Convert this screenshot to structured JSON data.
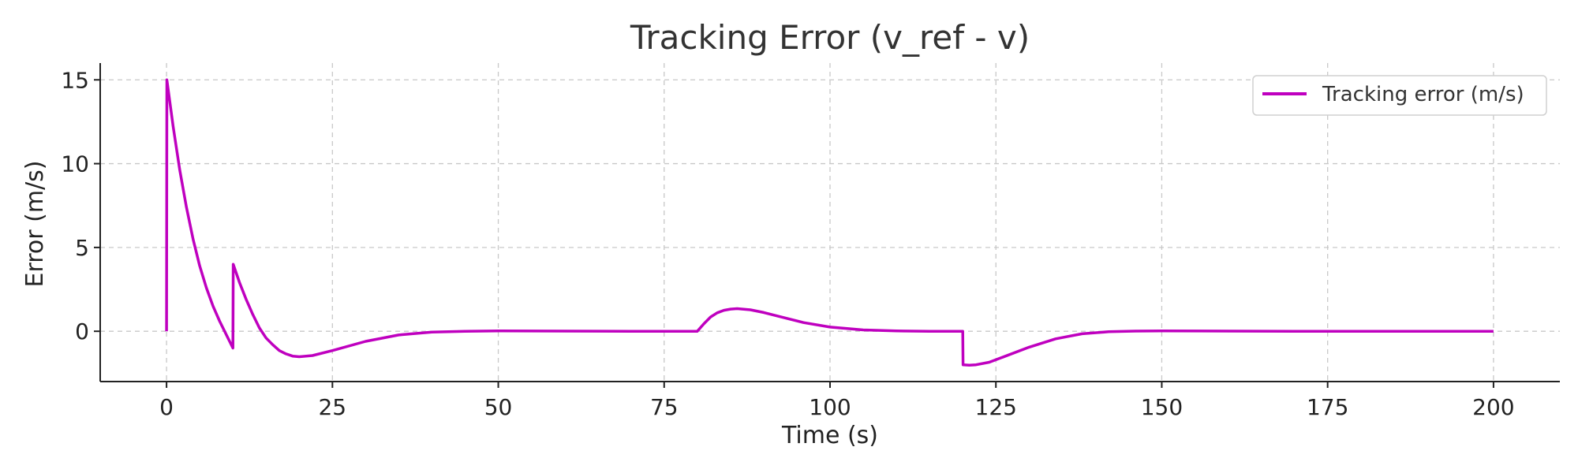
{
  "chart_data": {
    "type": "line",
    "title": "Tracking Error (v_ref - v)",
    "xlabel": "Time (s)",
    "ylabel": "Error (m/s)",
    "xlim": [
      -10,
      210
    ],
    "ylim": [
      -3,
      16
    ],
    "xticks": [
      0,
      25,
      50,
      75,
      100,
      125,
      150,
      175,
      200
    ],
    "yticks": [
      0,
      5,
      10,
      15
    ],
    "grid": true,
    "legend_position": "top-right",
    "series": [
      {
        "name": "Tracking error (m/s)",
        "color": "#BF00BF",
        "points": [
          [
            0,
            0
          ],
          [
            0.05,
            15
          ],
          [
            1,
            12.2
          ],
          [
            2,
            9.6
          ],
          [
            3,
            7.4
          ],
          [
            4,
            5.5
          ],
          [
            5,
            3.9
          ],
          [
            6,
            2.6
          ],
          [
            7,
            1.5
          ],
          [
            8,
            0.6
          ],
          [
            9,
            -0.2
          ],
          [
            10,
            -1.0
          ],
          [
            10.05,
            4.0
          ],
          [
            11,
            2.9
          ],
          [
            12,
            1.9
          ],
          [
            13,
            1.0
          ],
          [
            14,
            0.2
          ],
          [
            15,
            -0.4
          ],
          [
            16,
            -0.8
          ],
          [
            17,
            -1.15
          ],
          [
            18,
            -1.35
          ],
          [
            19,
            -1.48
          ],
          [
            20,
            -1.52
          ],
          [
            22,
            -1.45
          ],
          [
            25,
            -1.15
          ],
          [
            30,
            -0.6
          ],
          [
            35,
            -0.22
          ],
          [
            40,
            -0.05
          ],
          [
            45,
            0.0
          ],
          [
            50,
            0.02
          ],
          [
            60,
            0.01
          ],
          [
            70,
            0.0
          ],
          [
            80,
            0.0
          ],
          [
            81,
            0.45
          ],
          [
            82,
            0.85
          ],
          [
            83,
            1.1
          ],
          [
            84,
            1.25
          ],
          [
            85,
            1.32
          ],
          [
            86,
            1.35
          ],
          [
            88,
            1.28
          ],
          [
            90,
            1.12
          ],
          [
            93,
            0.82
          ],
          [
            96,
            0.52
          ],
          [
            100,
            0.25
          ],
          [
            105,
            0.08
          ],
          [
            110,
            0.02
          ],
          [
            115,
            0.0
          ],
          [
            120,
            0.0
          ],
          [
            120.05,
            -2.0
          ],
          [
            121,
            -2.02
          ],
          [
            122,
            -2.0
          ],
          [
            124,
            -1.85
          ],
          [
            126,
            -1.55
          ],
          [
            130,
            -0.95
          ],
          [
            134,
            -0.45
          ],
          [
            138,
            -0.15
          ],
          [
            142,
            -0.03
          ],
          [
            146,
            0.01
          ],
          [
            150,
            0.02
          ],
          [
            160,
            0.01
          ],
          [
            170,
            0.0
          ],
          [
            180,
            0.0
          ],
          [
            190,
            0.0
          ],
          [
            200,
            0.0
          ]
        ]
      }
    ]
  }
}
